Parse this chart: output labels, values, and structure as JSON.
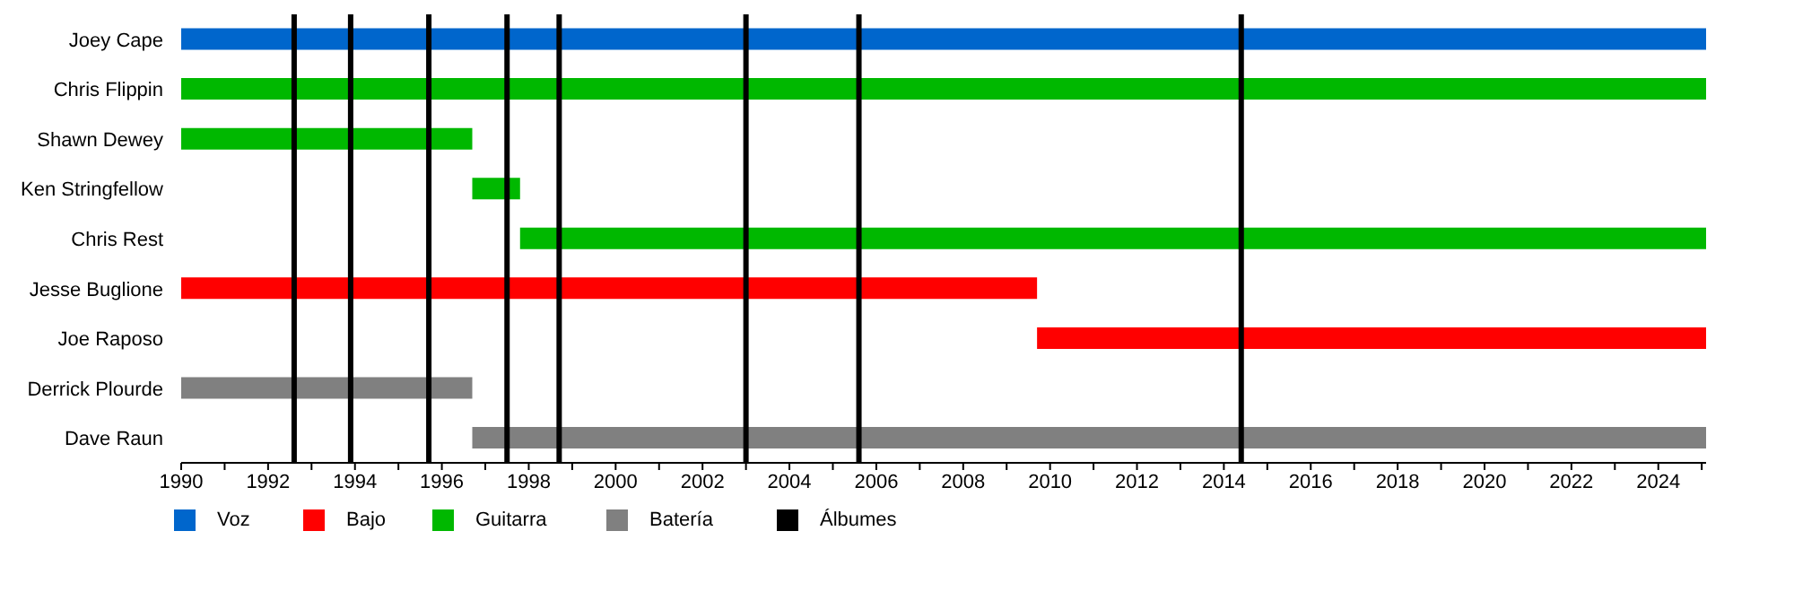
{
  "chart_data": {
    "type": "bar",
    "orientation": "horizontal",
    "categories": [
      "Joey Cape",
      "Chris Flippin",
      "Shawn Dewey",
      "Ken Stringfellow",
      "Chris Rest",
      "Jesse Buglione",
      "Joe Raposo",
      "Derrick Plourde",
      "Dave Raun"
    ],
    "series": [
      {
        "name": "Voz",
        "color": "#0066cc",
        "values": [
          35.1,
          null,
          null,
          null,
          null,
          null,
          null,
          null,
          null
        ],
        "base": [
          1990,
          null,
          null,
          null,
          null,
          null,
          null,
          null,
          null
        ]
      },
      {
        "name": "Bajo",
        "color": "#ff0000",
        "values": [
          null,
          null,
          null,
          null,
          null,
          19.7,
          15.4,
          null,
          null
        ],
        "base": [
          null,
          null,
          null,
          null,
          null,
          1990,
          2009.7,
          null,
          null
        ]
      },
      {
        "name": "Guitarra",
        "color": "#00b800",
        "values": [
          null,
          35.1,
          6.7,
          1.1,
          27.3,
          null,
          null,
          null,
          null
        ],
        "base": [
          null,
          1990,
          1990,
          1996.7,
          1997.8,
          null,
          null,
          null,
          null
        ]
      },
      {
        "name": "Batería",
        "color": "#808080",
        "values": [
          null,
          null,
          null,
          null,
          null,
          null,
          null,
          6.7,
          28.4
        ],
        "base": [
          null,
          null,
          null,
          null,
          null,
          null,
          null,
          1990,
          1996.7
        ]
      }
    ],
    "xlim": [
      1990,
      2025.1
    ],
    "xticks": [
      1990,
      {
        "value": 1991,
        "label": null
      },
      1992,
      {
        "value": 1993,
        "label": null
      },
      1994,
      {
        "value": 1995,
        "label": null
      },
      1996,
      {
        "value": 1997,
        "label": null
      },
      1998,
      {
        "value": 1999,
        "label": null
      },
      2000,
      {
        "value": 2001,
        "label": null
      },
      2002,
      {
        "value": 2003,
        "label": null
      },
      2004,
      {
        "value": 2005,
        "label": null
      },
      2006,
      {
        "value": 2007,
        "label": null
      },
      2008,
      {
        "value": 2009,
        "label": null
      },
      2010,
      {
        "value": 2011,
        "label": null
      },
      2012,
      {
        "value": 2013,
        "label": null
      },
      2014,
      {
        "value": 2015,
        "label": null
      },
      2016,
      {
        "value": 2017,
        "label": null
      },
      2018,
      {
        "value": 2019,
        "label": null
      },
      2020,
      {
        "value": 2021,
        "label": null
      },
      2022,
      {
        "value": 2023,
        "label": null
      },
      2024,
      {
        "value": 2025,
        "label": null
      }
    ],
    "ref_lines": [
      {
        "axis": "x",
        "value": 1992.6,
        "label": "Álbumes",
        "color": "#000000"
      },
      {
        "axis": "x",
        "value": 1993.9,
        "color": "#000000"
      },
      {
        "axis": "x",
        "value": 1995.7,
        "color": "#000000"
      },
      {
        "axis": "x",
        "value": 1997.5,
        "color": "#000000"
      },
      {
        "axis": "x",
        "value": 1998.7,
        "color": "#000000"
      },
      {
        "axis": "x",
        "value": 2003.0,
        "color": "#000000"
      },
      {
        "axis": "x",
        "value": 2005.6,
        "color": "#000000"
      },
      {
        "axis": "x",
        "value": 2014.4,
        "color": "#000000"
      }
    ],
    "grid": false,
    "legend": "bottom"
  }
}
